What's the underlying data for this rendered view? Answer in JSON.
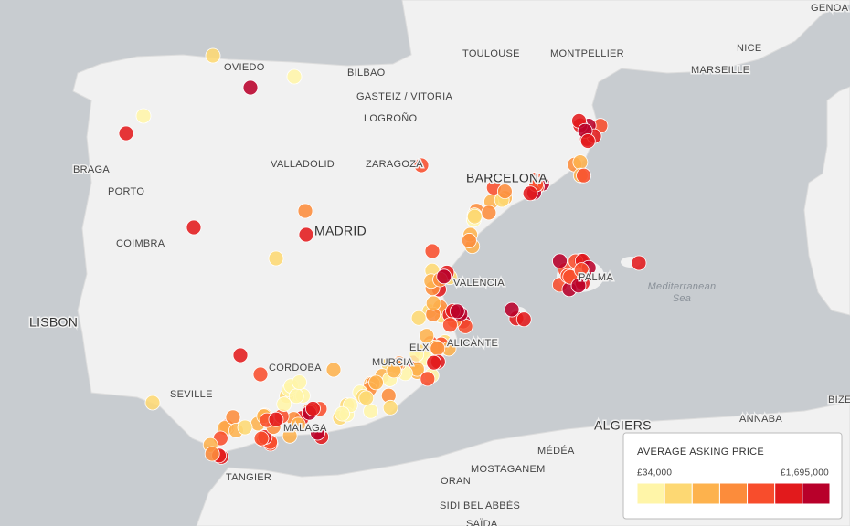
{
  "map": {
    "places": [
      "GENOA",
      "OVIEDO",
      "BILBAO",
      "TOULOUSE",
      "MONTPELLIER",
      "NICE",
      "MARSEILLE",
      "GASTEIZ / VITORIA",
      "LOGROÑO",
      "BRAGA",
      "VALLADOLID",
      "ZARAGOZA",
      "BARCELONA",
      "PORTO",
      "MADRID",
      "COIMBRA",
      "VALENCIA",
      "PALMA",
      "LISBON",
      "ELX",
      "ALICANTE",
      "MURCIA",
      "CORDOBA",
      "SEVILLE",
      "MALAGA",
      "ALGIERS",
      "ANNABA",
      "BIZE",
      "MÉDÉA",
      "TANGIER",
      "ORAN",
      "MOSTAGANEM",
      "SIDI BEL ABBÈS",
      "SAÏDA"
    ],
    "sea_label": [
      "Mediterranean",
      "Sea"
    ]
  },
  "legend": {
    "title": "AVERAGE ASKING PRICE",
    "min_label": "£34,000",
    "max_label": "£1,695,000",
    "colors": [
      "#fff5a8",
      "#fdd873",
      "#fdb24d",
      "#fc8c3b",
      "#f84d2c",
      "#e21a1c",
      "#b8002a"
    ]
  }
}
